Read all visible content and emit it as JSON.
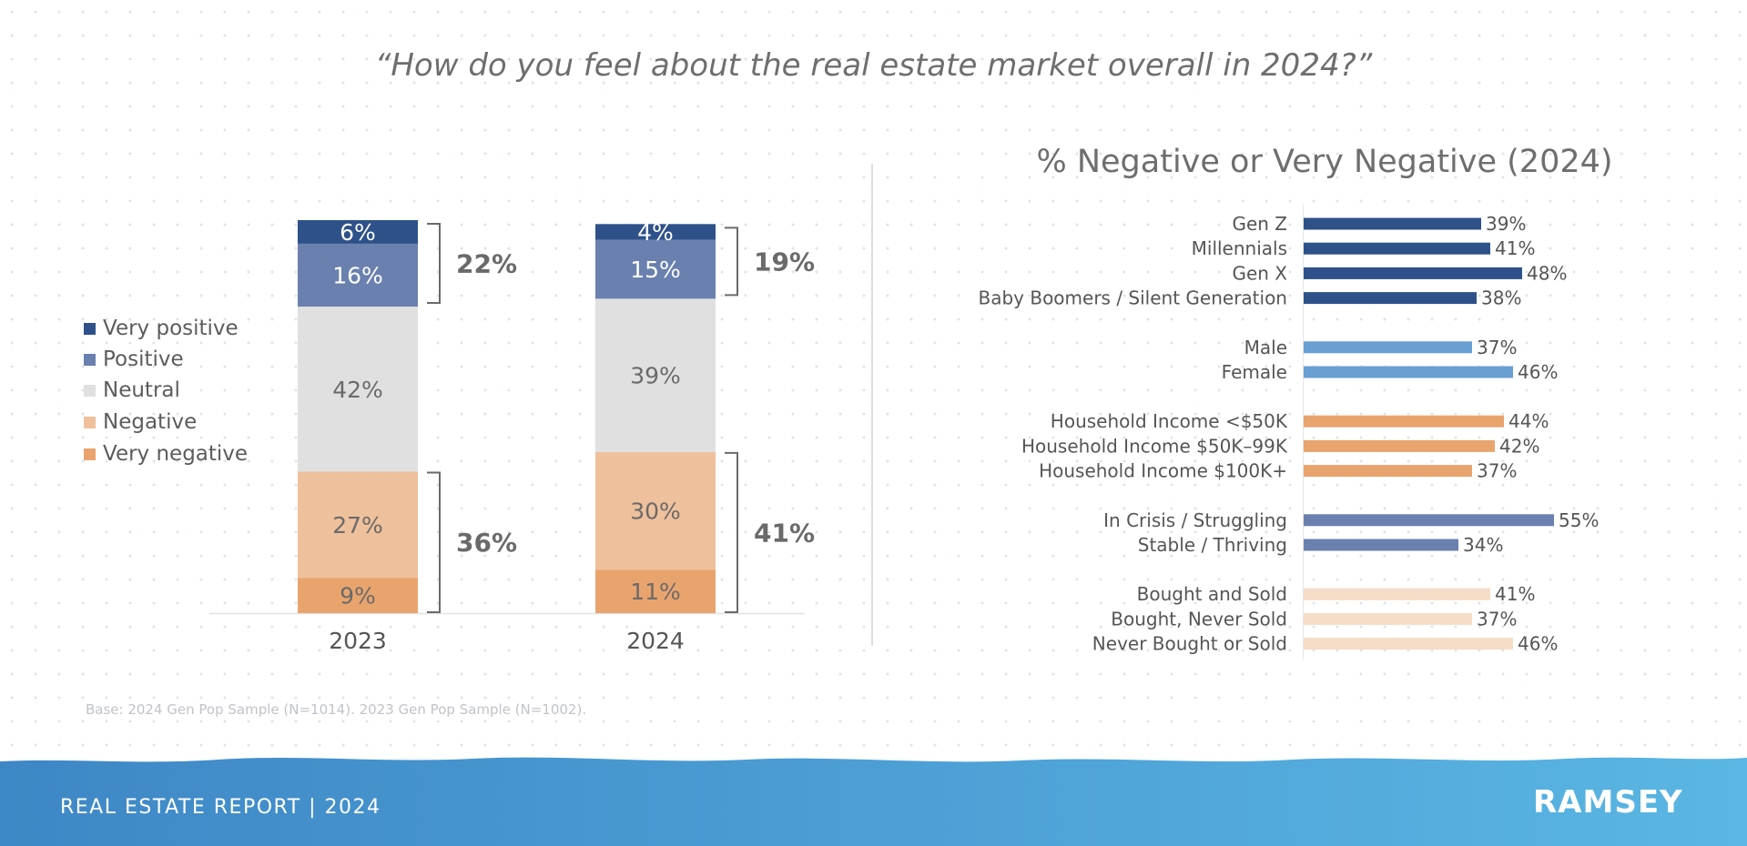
{
  "page": {
    "question": "“How do you feel about the real estate market overall in 2024?”",
    "footnote": "Base: 2024 Gen Pop Sample (N=1014). 2023 Gen Pop Sample (N=1002).",
    "footer_title": "REAL ESTATE REPORT | 2024",
    "brand": "RAMSEY"
  },
  "colors": {
    "very_positive": "#2e5189",
    "positive": "#6a80ae",
    "neutral": "#e0e0e0",
    "negative": "#efc09c",
    "very_negative": "#e9a46e",
    "gen_bars": "#2e5189",
    "gender_bars": "#6a9fd4",
    "income_bars": "#e9a46e",
    "finance_bars": "#6a80ae",
    "home_bars": "#f5dcc6",
    "footer_start": "#3e87c6",
    "footer_end": "#5ab6e3"
  },
  "chart_data": [
    {
      "type": "bar",
      "stacked": true,
      "categories": [
        "2023",
        "2024"
      ],
      "series": [
        {
          "name": "Very negative",
          "key": "very_negative",
          "values": [
            9,
            11
          ],
          "labels": [
            "9%",
            "11%"
          ]
        },
        {
          "name": "Negative",
          "key": "negative",
          "values": [
            27,
            30
          ],
          "labels": [
            "27%",
            "30%"
          ]
        },
        {
          "name": "Neutral",
          "key": "neutral",
          "values": [
            42,
            39
          ],
          "labels": [
            "42%",
            "39%"
          ]
        },
        {
          "name": "Positive",
          "key": "positive",
          "values": [
            16,
            15
          ],
          "labels": [
            "16%",
            "15%"
          ]
        },
        {
          "name": "Very positive",
          "key": "very_positive",
          "values": [
            6,
            4
          ],
          "labels": [
            "6%",
            "4%"
          ]
        }
      ],
      "legend": [
        "Very positive",
        "Positive",
        "Neutral",
        "Negative",
        "Very negative"
      ],
      "legend_position": "left",
      "bracket_totals": {
        "positive": [
          "22%",
          "19%"
        ],
        "negative": [
          "36%",
          "41%"
        ]
      }
    },
    {
      "type": "bar",
      "orientation": "horizontal",
      "title": "% Negative or Very Negative (2024)",
      "xlim": [
        0,
        60
      ],
      "groups": [
        {
          "color_key": "gen_bars",
          "items": [
            {
              "label": "Gen Z",
              "value": 39,
              "value_label": "39%"
            },
            {
              "label": "Millennials",
              "value": 41,
              "value_label": "41%"
            },
            {
              "label": "Gen X",
              "value": 48,
              "value_label": "48%"
            },
            {
              "label": "Baby Boomers / Silent Generation",
              "value": 38,
              "value_label": "38%"
            }
          ]
        },
        {
          "color_key": "gender_bars",
          "items": [
            {
              "label": "Male",
              "value": 37,
              "value_label": "37%"
            },
            {
              "label": "Female",
              "value": 46,
              "value_label": "46%"
            }
          ]
        },
        {
          "color_key": "income_bars",
          "items": [
            {
              "label": "Household Income <$50K",
              "value": 44,
              "value_label": "44%"
            },
            {
              "label": "Household Income $50K–99K",
              "value": 42,
              "value_label": "42%"
            },
            {
              "label": "Household Income $100K+",
              "value": 37,
              "value_label": "37%"
            }
          ]
        },
        {
          "color_key": "finance_bars",
          "items": [
            {
              "label": "In Crisis / Struggling",
              "value": 55,
              "value_label": "55%"
            },
            {
              "label": "Stable / Thriving",
              "value": 34,
              "value_label": "34%"
            }
          ]
        },
        {
          "color_key": "home_bars",
          "items": [
            {
              "label": "Bought and Sold",
              "value": 41,
              "value_label": "41%"
            },
            {
              "label": "Bought, Never Sold",
              "value": 37,
              "value_label": "37%"
            },
            {
              "label": "Never Bought or Sold",
              "value": 46,
              "value_label": "46%"
            }
          ]
        }
      ]
    }
  ]
}
